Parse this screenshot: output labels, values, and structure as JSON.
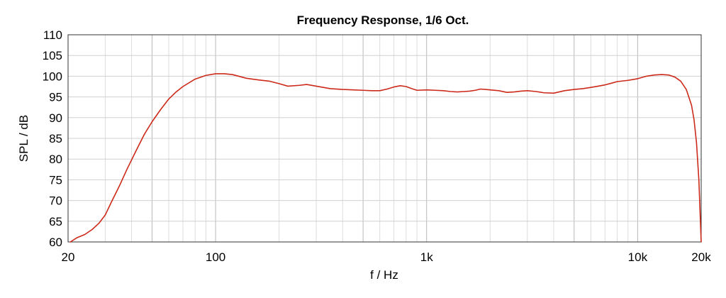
{
  "chart_data": {
    "type": "line",
    "title": "Frequency Response, 1/6 Oct.",
    "xlabel": "f / Hz",
    "ylabel": "SPL / dB",
    "x_scale": "log",
    "xlim": [
      20,
      20000
    ],
    "ylim": [
      60,
      110
    ],
    "grid": true,
    "x_ticks": [
      {
        "value": 20,
        "label": "20"
      },
      {
        "value": 100,
        "label": "100"
      },
      {
        "value": 1000,
        "label": "1k"
      },
      {
        "value": 10000,
        "label": "10k"
      },
      {
        "value": 20000,
        "label": "20k"
      }
    ],
    "y_ticks": [
      {
        "value": 60,
        "label": "60"
      },
      {
        "value": 65,
        "label": "65"
      },
      {
        "value": 70,
        "label": "70"
      },
      {
        "value": 75,
        "label": "75"
      },
      {
        "value": 80,
        "label": "80"
      },
      {
        "value": 85,
        "label": "85"
      },
      {
        "value": 90,
        "label": "90"
      },
      {
        "value": 95,
        "label": "95"
      },
      {
        "value": 100,
        "label": "100"
      },
      {
        "value": 105,
        "label": "105"
      },
      {
        "value": 110,
        "label": "110"
      }
    ],
    "series": [
      {
        "color": "#cc2a1a",
        "points": [
          [
            20.5,
            60.0
          ],
          [
            22,
            61.0
          ],
          [
            24,
            61.8
          ],
          [
            26,
            63.0
          ],
          [
            28,
            64.5
          ],
          [
            30,
            66.5
          ],
          [
            32,
            69.5
          ],
          [
            35,
            73.5
          ],
          [
            38,
            77.5
          ],
          [
            42,
            82.0
          ],
          [
            46,
            86.0
          ],
          [
            50,
            89.0
          ],
          [
            55,
            92.0
          ],
          [
            60,
            94.5
          ],
          [
            65,
            96.2
          ],
          [
            70,
            97.5
          ],
          [
            80,
            99.3
          ],
          [
            90,
            100.2
          ],
          [
            100,
            100.6
          ],
          [
            110,
            100.6
          ],
          [
            120,
            100.4
          ],
          [
            140,
            99.5
          ],
          [
            160,
            99.1
          ],
          [
            180,
            98.8
          ],
          [
            200,
            98.2
          ],
          [
            220,
            97.6
          ],
          [
            250,
            97.8
          ],
          [
            270,
            98.0
          ],
          [
            300,
            97.6
          ],
          [
            350,
            97.0
          ],
          [
            400,
            96.8
          ],
          [
            450,
            96.7
          ],
          [
            500,
            96.6
          ],
          [
            550,
            96.5
          ],
          [
            600,
            96.5
          ],
          [
            650,
            96.9
          ],
          [
            700,
            97.4
          ],
          [
            750,
            97.7
          ],
          [
            800,
            97.5
          ],
          [
            850,
            97.0
          ],
          [
            900,
            96.6
          ],
          [
            1000,
            96.7
          ],
          [
            1100,
            96.6
          ],
          [
            1200,
            96.5
          ],
          [
            1300,
            96.3
          ],
          [
            1400,
            96.2
          ],
          [
            1500,
            96.3
          ],
          [
            1600,
            96.4
          ],
          [
            1700,
            96.6
          ],
          [
            1800,
            96.9
          ],
          [
            1900,
            96.8
          ],
          [
            2000,
            96.7
          ],
          [
            2200,
            96.5
          ],
          [
            2400,
            96.1
          ],
          [
            2600,
            96.2
          ],
          [
            2800,
            96.4
          ],
          [
            3000,
            96.5
          ],
          [
            3300,
            96.3
          ],
          [
            3600,
            96.0
          ],
          [
            4000,
            95.9
          ],
          [
            4500,
            96.5
          ],
          [
            5000,
            96.8
          ],
          [
            5500,
            97.0
          ],
          [
            6000,
            97.3
          ],
          [
            6500,
            97.6
          ],
          [
            7000,
            97.9
          ],
          [
            7500,
            98.3
          ],
          [
            8000,
            98.7
          ],
          [
            9000,
            99.0
          ],
          [
            10000,
            99.4
          ],
          [
            11000,
            100.0
          ],
          [
            12000,
            100.3
          ],
          [
            13000,
            100.4
          ],
          [
            14000,
            100.3
          ],
          [
            15000,
            99.8
          ],
          [
            16000,
            98.8
          ],
          [
            17000,
            96.8
          ],
          [
            18000,
            93.0
          ],
          [
            18500,
            89.5
          ],
          [
            19000,
            84.0
          ],
          [
            19500,
            75.0
          ],
          [
            20000,
            60.0
          ]
        ]
      }
    ]
  }
}
